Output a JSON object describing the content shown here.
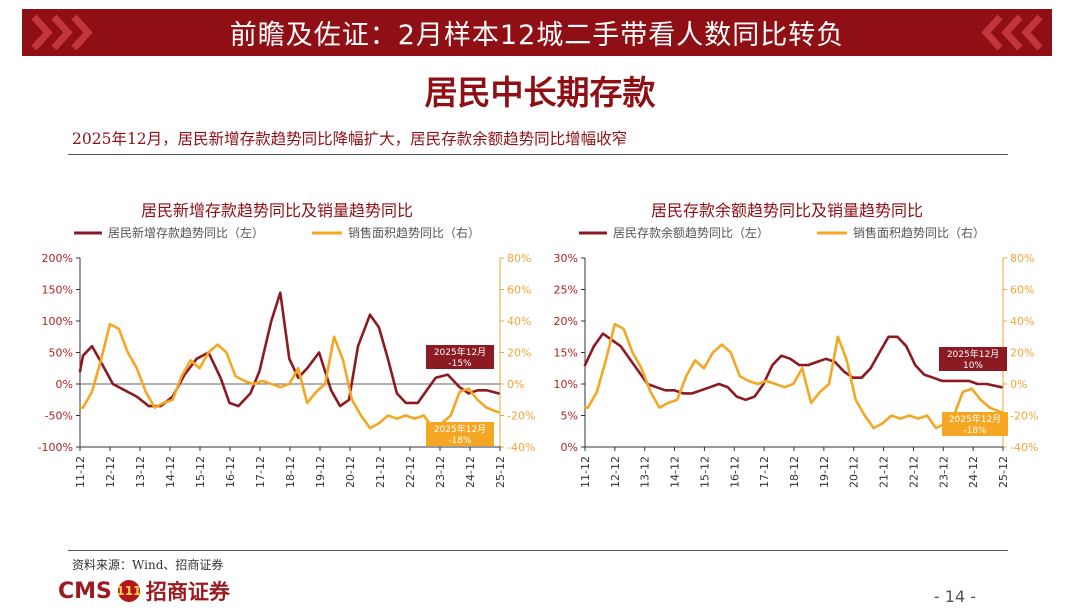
{
  "header": {
    "title": "前瞻及佐证：2月样本12城二手带看人数同比转负"
  },
  "section_title": "居民中长期存款",
  "subtitle": "2025年12月，居民新增存款趋势同比降幅扩大，居民存款余额趋势同比增幅收窄",
  "footer": {
    "source": "资料来源：Wind、招商证券",
    "logo_text": "CMS",
    "logo_badge": "111",
    "logo_cn": "招商证券",
    "page": "- 14 -"
  },
  "colors": {
    "brand_red": "#8f0f14",
    "series_red": "#8c1a22",
    "series_orange": "#f5a623",
    "axis_orange": "#f0a53a"
  },
  "chart_data": [
    {
      "type": "line",
      "title": "居民新增存款趋势同比及销量趋势同比",
      "x_ticks": [
        "11-12",
        "12-12",
        "13-12",
        "14-12",
        "15-12",
        "16-12",
        "17-12",
        "18-12",
        "19-12",
        "20-12",
        "21-12",
        "22-12",
        "23-12",
        "24-12",
        "25-12"
      ],
      "left_axis": {
        "ticks": [
          "200%",
          "150%",
          "100%",
          "50%",
          "0%",
          "-50%",
          "-100%"
        ],
        "ylim": [
          -100,
          200
        ],
        "unit": "%"
      },
      "right_axis": {
        "ticks": [
          "80%",
          "60%",
          "40%",
          "20%",
          "0%",
          "-20%",
          "-40%"
        ],
        "ylim": [
          -40,
          80
        ],
        "unit": "%"
      },
      "series": [
        {
          "name": "居民新增存款趋势同比（左）",
          "axis": "left",
          "color": "#8c1a22",
          "x": [
            2011.9,
            2012.0,
            2012.3,
            2012.6,
            2013.0,
            2013.4,
            2013.8,
            2014.2,
            2014.6,
            2015.0,
            2015.4,
            2015.8,
            2016.2,
            2016.6,
            2016.9,
            2017.2,
            2017.6,
            2017.9,
            2018.3,
            2018.6,
            2018.9,
            2019.2,
            2019.5,
            2019.9,
            2020.3,
            2020.6,
            2020.9,
            2021.2,
            2021.6,
            2021.9,
            2022.2,
            2022.5,
            2022.8,
            2023.2,
            2023.5,
            2023.8,
            2024.2,
            2024.6,
            2024.9,
            2025.2,
            2025.5,
            2025.9
          ],
          "values": [
            20,
            45,
            60,
            35,
            0,
            -10,
            -20,
            -35,
            -35,
            -20,
            15,
            40,
            50,
            10,
            -30,
            -35,
            -15,
            20,
            100,
            145,
            40,
            10,
            25,
            50,
            -10,
            -35,
            -25,
            60,
            110,
            90,
            40,
            -15,
            -30,
            -30,
            -10,
            10,
            15,
            -5,
            -15,
            -10,
            -10,
            -15
          ]
        },
        {
          "name": "销售面积趋势同比（右）",
          "axis": "right",
          "color": "#f5a623",
          "x": [
            2011.9,
            2012.0,
            2012.3,
            2012.6,
            2012.9,
            2013.2,
            2013.5,
            2013.8,
            2014.1,
            2014.4,
            2014.7,
            2015.0,
            2015.3,
            2015.6,
            2015.9,
            2016.2,
            2016.5,
            2016.8,
            2017.1,
            2017.4,
            2017.7,
            2018.0,
            2018.3,
            2018.6,
            2018.9,
            2019.2,
            2019.5,
            2019.8,
            2020.1,
            2020.4,
            2020.7,
            2021.0,
            2021.3,
            2021.6,
            2021.9,
            2022.2,
            2022.5,
            2022.8,
            2023.1,
            2023.4,
            2023.7,
            2024.0,
            2024.3,
            2024.6,
            2024.9,
            2025.2,
            2025.5,
            2025.9
          ],
          "values": [
            -15,
            -15,
            -5,
            15,
            38,
            35,
            20,
            10,
            -5,
            -15,
            -12,
            -10,
            5,
            15,
            10,
            20,
            25,
            20,
            5,
            2,
            0,
            2,
            0,
            -2,
            0,
            10,
            -12,
            -5,
            0,
            30,
            15,
            -10,
            -20,
            -28,
            -25,
            -20,
            -22,
            -20,
            -22,
            -20,
            -28,
            -25,
            -20,
            -5,
            -3,
            -10,
            -15,
            -18
          ]
        }
      ],
      "annotations": [
        {
          "label": "2025年12月",
          "value": "-15%",
          "color": "#8c1a22"
        },
        {
          "label": "2025年12月",
          "value": "-18%",
          "color": "#f5a623"
        }
      ]
    },
    {
      "type": "line",
      "title": "居民存款余额趋势同比及销量趋势同比",
      "x_ticks": [
        "11-12",
        "12-12",
        "13-12",
        "14-12",
        "15-12",
        "16-12",
        "17-12",
        "18-12",
        "19-12",
        "20-12",
        "21-12",
        "22-12",
        "23-12",
        "24-12",
        "25-12"
      ],
      "left_axis": {
        "ticks": [
          "30%",
          "25%",
          "20%",
          "15%",
          "10%",
          "5%",
          "0%"
        ],
        "ylim": [
          0,
          30
        ],
        "unit": "%"
      },
      "right_axis": {
        "ticks": [
          "80%",
          "60%",
          "40%",
          "20%",
          "0%",
          "-20%",
          "-40%"
        ],
        "ylim": [
          -40,
          80
        ],
        "unit": "%"
      },
      "series": [
        {
          "name": "居民存款余额趋势同比（左）",
          "axis": "left",
          "color": "#8c1a22",
          "x": [
            2011.9,
            2012.2,
            2012.5,
            2012.8,
            2013.1,
            2013.4,
            2013.7,
            2014.0,
            2014.3,
            2014.6,
            2014.9,
            2015.2,
            2015.5,
            2015.8,
            2016.1,
            2016.4,
            2016.7,
            2017.0,
            2017.3,
            2017.6,
            2017.9,
            2018.2,
            2018.5,
            2018.8,
            2019.1,
            2019.4,
            2019.7,
            2020.0,
            2020.3,
            2020.6,
            2020.9,
            2021.2,
            2021.5,
            2021.8,
            2022.1,
            2022.4,
            2022.7,
            2023.0,
            2023.3,
            2023.6,
            2023.9,
            2024.2,
            2024.5,
            2024.8,
            2025.1,
            2025.4,
            2025.9
          ],
          "values": [
            13,
            16,
            18,
            17,
            16,
            14,
            12,
            10,
            9.5,
            9,
            9,
            8.5,
            8.5,
            9,
            9.5,
            10,
            9.5,
            8,
            7.5,
            8,
            10,
            13,
            14.5,
            14,
            13,
            13,
            13.5,
            14,
            13.5,
            12,
            11,
            11,
            12.5,
            15,
            17.5,
            17.5,
            16,
            13,
            11.5,
            11,
            10.5,
            10.5,
            10.5,
            10.5,
            10,
            10,
            9.5
          ]
        },
        {
          "name": "销售面积趋势同比（右）",
          "axis": "right",
          "color": "#f5a623",
          "x": [
            2011.9,
            2012.0,
            2012.3,
            2012.6,
            2012.9,
            2013.2,
            2013.5,
            2013.8,
            2014.1,
            2014.4,
            2014.7,
            2015.0,
            2015.3,
            2015.6,
            2015.9,
            2016.2,
            2016.5,
            2016.8,
            2017.1,
            2017.4,
            2017.7,
            2018.0,
            2018.3,
            2018.6,
            2018.9,
            2019.2,
            2019.5,
            2019.8,
            2020.1,
            2020.4,
            2020.7,
            2021.0,
            2021.3,
            2021.6,
            2021.9,
            2022.2,
            2022.5,
            2022.8,
            2023.1,
            2023.4,
            2023.7,
            2024.0,
            2024.3,
            2024.6,
            2024.9,
            2025.2,
            2025.5,
            2025.9
          ],
          "values": [
            -15,
            -15,
            -5,
            15,
            38,
            35,
            20,
            10,
            -5,
            -15,
            -12,
            -10,
            5,
            15,
            10,
            20,
            25,
            20,
            5,
            2,
            0,
            2,
            0,
            -2,
            0,
            10,
            -12,
            -5,
            0,
            30,
            15,
            -10,
            -20,
            -28,
            -25,
            -20,
            -22,
            -20,
            -22,
            -20,
            -28,
            -25,
            -20,
            -5,
            -3,
            -10,
            -15,
            -18
          ]
        }
      ],
      "annotations": [
        {
          "label": "2025年12月",
          "value": "10%",
          "color": "#8c1a22"
        },
        {
          "label": "2025年12月",
          "value": "-18%",
          "color": "#f5a623"
        }
      ]
    }
  ]
}
